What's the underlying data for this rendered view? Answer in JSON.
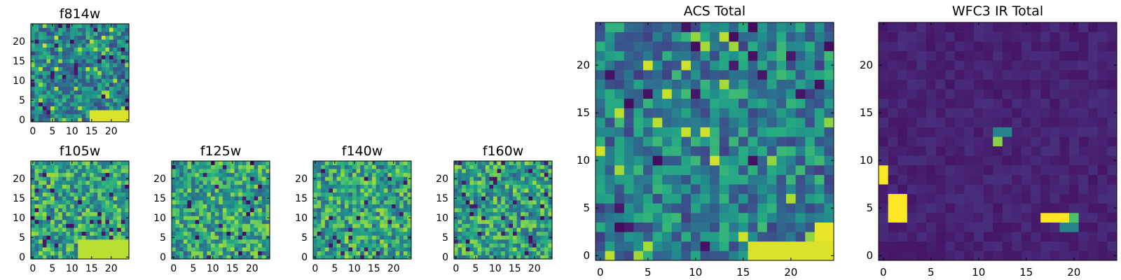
{
  "chart_data": [
    {
      "type": "heatmap",
      "title": "f814w",
      "colormap": "viridis",
      "grid_size": 25,
      "xlim": [
        0,
        24
      ],
      "ylim": [
        0,
        24
      ],
      "x_ticks": [
        0,
        5,
        10,
        15,
        20
      ],
      "y_ticks": [
        0,
        5,
        10,
        15,
        20
      ],
      "x_tick_labels": [
        "0",
        "5",
        "10",
        "15",
        "20"
      ],
      "y_tick_labels": [
        "0",
        "5",
        "10",
        "15",
        "20"
      ],
      "pattern": "noise",
      "seed": 11,
      "hot_regions": [
        {
          "x0": 15,
          "x1": 24,
          "y0": 0,
          "y1": 2,
          "value": 0.95
        }
      ]
    },
    {
      "type": "heatmap",
      "title": "f105w",
      "colormap": "viridis",
      "grid_size": 25,
      "xlim": [
        0,
        24
      ],
      "ylim": [
        0,
        24
      ],
      "x_ticks": [
        0,
        5,
        10,
        15,
        20
      ],
      "y_ticks": [
        0,
        5,
        10,
        15,
        20
      ],
      "x_tick_labels": [
        "0",
        "5",
        "10",
        "15",
        "20"
      ],
      "y_tick_labels": [
        "0",
        "5",
        "10",
        "15",
        "20"
      ],
      "pattern": "smooth",
      "seed": 23,
      "hot_regions": [
        {
          "x0": 12,
          "x1": 24,
          "y0": 0,
          "y1": 4,
          "value": 0.9
        }
      ]
    },
    {
      "type": "heatmap",
      "title": "f125w",
      "colormap": "viridis",
      "grid_size": 25,
      "xlim": [
        0,
        24
      ],
      "ylim": [
        0,
        24
      ],
      "x_ticks": [
        0,
        5,
        10,
        15,
        20
      ],
      "y_ticks": [
        0,
        5,
        10,
        15,
        20
      ],
      "x_tick_labels": [
        "0",
        "5",
        "10",
        "15",
        "20"
      ],
      "y_tick_labels": [
        "0",
        "5",
        "10",
        "15",
        "20"
      ],
      "pattern": "smooth",
      "seed": 37,
      "hot_regions": []
    },
    {
      "type": "heatmap",
      "title": "f140w",
      "colormap": "viridis",
      "grid_size": 25,
      "xlim": [
        0,
        24
      ],
      "ylim": [
        0,
        24
      ],
      "x_ticks": [
        0,
        5,
        10,
        15,
        20
      ],
      "y_ticks": [
        0,
        5,
        10,
        15,
        20
      ],
      "x_tick_labels": [
        "0",
        "5",
        "10",
        "15",
        "20"
      ],
      "y_tick_labels": [
        "0",
        "5",
        "10",
        "15",
        "20"
      ],
      "pattern": "smooth",
      "seed": 51,
      "hot_regions": []
    },
    {
      "type": "heatmap",
      "title": "f160w",
      "colormap": "viridis",
      "grid_size": 25,
      "xlim": [
        0,
        24
      ],
      "ylim": [
        0,
        24
      ],
      "x_ticks": [
        0,
        5,
        10,
        15,
        20
      ],
      "y_ticks": [
        0,
        5,
        10,
        15,
        20
      ],
      "x_tick_labels": [
        "0",
        "5",
        "10",
        "15",
        "20"
      ],
      "y_tick_labels": [
        "0",
        "5",
        "10",
        "15",
        "20"
      ],
      "pattern": "smooth",
      "seed": 67,
      "hot_regions": []
    },
    {
      "type": "heatmap",
      "title": "ACS Total",
      "colormap": "viridis",
      "grid_size": 25,
      "xlim": [
        0,
        24
      ],
      "ylim": [
        0,
        24
      ],
      "x_ticks": [
        0,
        5,
        10,
        15,
        20
      ],
      "y_ticks": [
        0,
        5,
        10,
        15,
        20
      ],
      "x_tick_labels": [
        "0",
        "5",
        "10",
        "15",
        "20"
      ],
      "y_tick_labels": [
        "0",
        "5",
        "10",
        "15",
        "20"
      ],
      "pattern": "noise",
      "seed": 79,
      "hot_regions": [
        {
          "x0": 16,
          "x1": 24,
          "y0": 0,
          "y1": 1,
          "value": 0.95
        },
        {
          "x0": 23,
          "x1": 24,
          "y0": 2,
          "y1": 3,
          "value": 0.97
        }
      ]
    },
    {
      "type": "heatmap",
      "title": "WFC3 IR Total",
      "colormap": "viridis",
      "grid_size": 25,
      "xlim": [
        0,
        24
      ],
      "ylim": [
        0,
        24
      ],
      "x_ticks": [
        0,
        5,
        10,
        15,
        20
      ],
      "y_ticks": [
        0,
        5,
        10,
        15,
        20
      ],
      "x_tick_labels": [
        "0",
        "5",
        "10",
        "15",
        "20"
      ],
      "y_tick_labels": [
        "0",
        "5",
        "10",
        "15",
        "20"
      ],
      "pattern": "dark",
      "seed": 97,
      "hot_regions": [
        {
          "x0": 0,
          "x1": 0,
          "y0": 8,
          "y1": 9,
          "value": 1.0
        },
        {
          "x0": 1,
          "x1": 2,
          "y0": 4,
          "y1": 6,
          "value": 1.0
        },
        {
          "x0": 17,
          "x1": 19,
          "y0": 4,
          "y1": 4,
          "value": 1.0
        },
        {
          "x0": 20,
          "x1": 20,
          "y0": 4,
          "y1": 4,
          "value": 0.72
        },
        {
          "x0": 19,
          "x1": 20,
          "y0": 3,
          "y1": 3,
          "value": 0.45
        },
        {
          "x0": 12,
          "x1": 12,
          "y0": 12,
          "y1": 12,
          "value": 0.82
        },
        {
          "x0": 12,
          "x1": 13,
          "y0": 13,
          "y1": 13,
          "value": 0.45
        }
      ]
    }
  ]
}
